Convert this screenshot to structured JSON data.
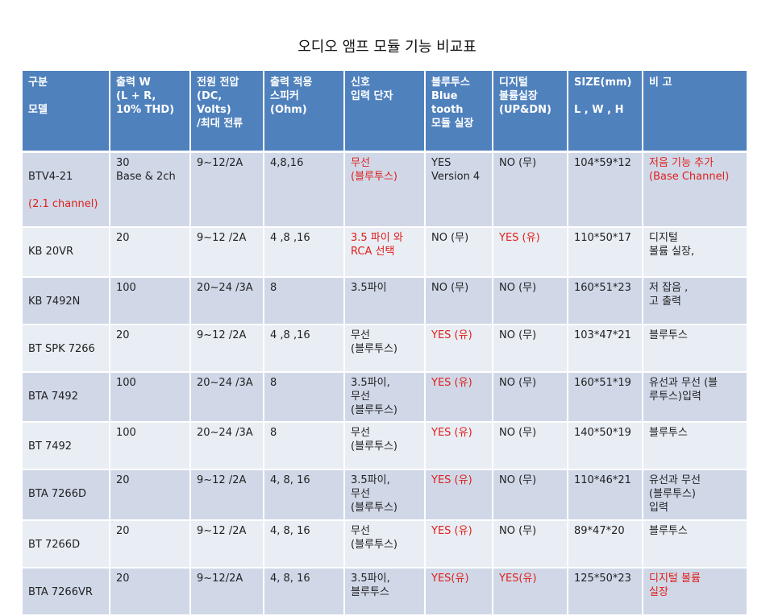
{
  "title": "오디오 앰프 모듈 기능 비교표",
  "colors": {
    "header_bg": "#4f81bd",
    "row_odd": "#d0d8e8",
    "row_even": "#e9edf4",
    "highlight": "#e0201b"
  },
  "headers": [
    "구분\n\n모델",
    "출력 W\n(L + R,\n10% THD)",
    "전원 전압\n(DC, Volts)\n/최대 전류",
    "출력 적용\n스피커\n(Ohm)",
    "신호\n입력 단자",
    "블루투스\nBlue\ntooth\n모듈 실장",
    "디지털\n볼륨실장\n(UP&DN)",
    "SIZE(mm)\n\nL , W  , H",
    "비 고"
  ],
  "rows": [
    {
      "model": "BTV4-21",
      "model_sub": "(2.1 channel)",
      "power": "30\nBase & 2ch",
      "voltage": "9~12/2A",
      "ohm": "4,8,16",
      "input": "무선\n(블루투스)",
      "bluetooth": "YES\nVersion 4",
      "volume": "NO (무)",
      "size": "104*59*12",
      "note": "저음 기능 추가\n(Base Channel)"
    },
    {
      "model": "KB 20VR",
      "model_sub": "",
      "power": "20",
      "voltage": "9~12 /2A",
      "ohm": "4 ,8 ,16",
      "input": "3.5 파이 와\nRCA 선택",
      "bluetooth": "NO (무)",
      "volume": "YES  (유)",
      "size": "110*50*17",
      "note": "디지털\n볼륨 실장,"
    },
    {
      "model": "KB 7492N",
      "model_sub": "",
      "power": "100",
      "voltage": "20~24 /3A",
      "ohm": "8",
      "input": "3.5파이",
      "bluetooth": "NO (무)",
      "volume": "NO (무)",
      "size": "160*51*23",
      "note": "저 잡음 ,\n고 출력"
    },
    {
      "model": "BT SPK 7266",
      "model_sub": "",
      "power": "20",
      "voltage": "9~12 /2A",
      "ohm": " 4 ,8 ,16",
      "input": "무선\n(블루투스)",
      "bluetooth": "YES (유)",
      "volume": "NO (무)",
      "size": "103*47*21",
      "note": "블루투스"
    },
    {
      "model": "BTA 7492",
      "model_sub": "",
      "power": "100",
      "voltage": "20~24 /3A",
      "ohm": "8",
      "input": "3.5파이,\n무선\n (블루투스)",
      "bluetooth": "YES (유)",
      "volume": "NO (무)",
      "size": "160*51*19",
      "note": "유선과 무선 (블\n루투스)입력"
    },
    {
      "model": "BT 7492",
      "model_sub": "",
      "power": "100",
      "voltage": "20~24 /3A",
      "ohm": "8",
      "input": "무선\n(블루투스)",
      "bluetooth": "YES (유)",
      "volume": "NO (무)",
      "size": "140*50*19",
      "note": "블루투스"
    },
    {
      "model": "BTA 7266D",
      "model_sub": "",
      "power": "20",
      "voltage": "9~12 /2A",
      "ohm": "4, 8,  16",
      "input": "3.5파이,\n무선\n(블루투스)",
      "bluetooth": "YES (유)",
      "volume": "NO (무)",
      "size": "110*46*21",
      "note": "유선과 무선\n(블루투스)\n입력"
    },
    {
      "model": "BT 7266D",
      "model_sub": "",
      "power": "20",
      "voltage": "9~12 /2A",
      "ohm": "4, 8,  16",
      "input": "무선\n(블루투스)",
      "bluetooth": "YES (유)",
      "volume": "NO (무)",
      "size": "89*47*20",
      "note": "블루투스"
    },
    {
      "model": "BTA 7266VR",
      "model_sub": "",
      "power": "20",
      "voltage": "9~12/2A",
      "ohm": "4, 8,  16",
      "input": "3.5파이,\n블루투스",
      "bluetooth": "YES(유)",
      "volume": "YES(유)",
      "size": "125*50*23",
      "note": "디지털 볼륨\n실장"
    }
  ]
}
